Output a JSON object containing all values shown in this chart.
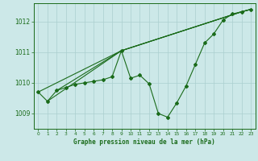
{
  "title": "Graphe pression niveau de la mer (hPa)",
  "bg_color": "#cce8e8",
  "grid_color": "#aacfcf",
  "line_color": "#1a6b1a",
  "marker_color": "#1a6b1a",
  "xlim": [
    -0.5,
    23.5
  ],
  "ylim": [
    1008.5,
    1012.6
  ],
  "xticks": [
    0,
    1,
    2,
    3,
    4,
    5,
    6,
    7,
    8,
    9,
    10,
    11,
    12,
    13,
    14,
    15,
    16,
    17,
    18,
    19,
    20,
    21,
    22,
    23
  ],
  "yticks": [
    1009,
    1010,
    1011,
    1012
  ],
  "series1": {
    "x": [
      0,
      1,
      2,
      3,
      4,
      5,
      6,
      7,
      8,
      9,
      10,
      11,
      12,
      13,
      14,
      15,
      16,
      17,
      18,
      19,
      20,
      21,
      22,
      23
    ],
    "y": [
      1009.7,
      1009.4,
      1009.75,
      1009.85,
      1009.95,
      1010.0,
      1010.05,
      1010.1,
      1010.2,
      1011.05,
      1010.15,
      1010.25,
      1009.97,
      1009.0,
      1008.88,
      1009.35,
      1009.9,
      1010.6,
      1011.3,
      1011.6,
      1012.05,
      1012.25,
      1012.32,
      1012.4
    ]
  },
  "series2": {
    "x": [
      0,
      9,
      22,
      23
    ],
    "y": [
      1009.7,
      1011.05,
      1012.32,
      1012.4
    ]
  },
  "series3": {
    "x": [
      2,
      9,
      22,
      23
    ],
    "y": [
      1009.75,
      1011.05,
      1012.32,
      1012.4
    ]
  },
  "series4": {
    "x": [
      1,
      9,
      22,
      23
    ],
    "y": [
      1009.4,
      1011.05,
      1012.32,
      1012.4
    ]
  }
}
